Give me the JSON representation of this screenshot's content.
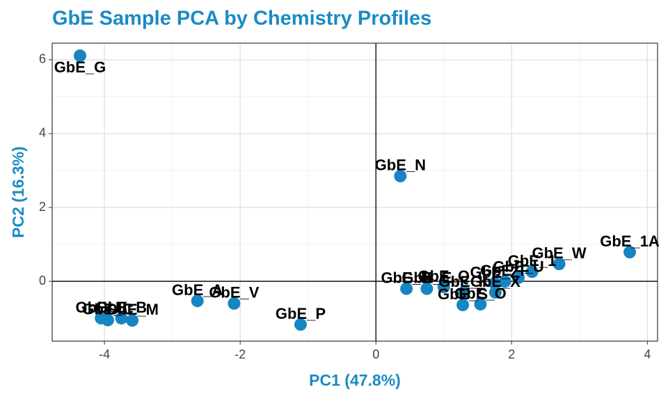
{
  "chart_data": {
    "type": "scatter",
    "title": "GbE Sample PCA by Chemistry Profiles",
    "x_label": "PC1 (47.8%)",
    "y_label": "PC2 (16.3%)",
    "xlim": [
      -4.77,
      4.15
    ],
    "ylim": [
      -1.62,
      6.45
    ],
    "xticks": [
      -4,
      -2,
      0,
      2,
      4
    ],
    "yticks": [
      0,
      2,
      4,
      6
    ],
    "grid": true,
    "zero_lines": true,
    "color": "#1785c2",
    "series": [
      {
        "name": "GbE samples",
        "color": "#1785c2",
        "labels": [
          "GbE_G",
          "GbE_N",
          "GbE_1A",
          "GbE_W",
          "GbE_A",
          "GbE_V",
          "GbE_P",
          "GbE_M",
          "GbE_B",
          "GbE_C",
          "GbE_H",
          "GbE_1",
          "GbE_U",
          "GbE_F",
          "GbE_Z",
          "GbE_X",
          "GbE_O",
          "GbE_S",
          "GbE_K",
          "GbE_D",
          "GbE_E",
          "GbE_Q"
        ],
        "x": [
          -4.36,
          0.36,
          3.74,
          2.7,
          -2.63,
          -2.09,
          -1.11,
          -3.59,
          -3.75,
          -3.95,
          -4.05,
          2.3,
          2.1,
          1.9,
          1.75,
          1.76,
          1.54,
          1.28,
          1.3,
          0.45,
          0.75,
          1.0
        ],
        "y": [
          6.11,
          2.85,
          0.79,
          0.47,
          -0.53,
          -0.6,
          -1.17,
          -1.06,
          -1.0,
          -1.05,
          -1.0,
          0.26,
          0.1,
          0.0,
          -0.05,
          -0.3,
          -0.62,
          -0.64,
          -0.3,
          -0.2,
          -0.2,
          -0.15
        ]
      }
    ]
  }
}
